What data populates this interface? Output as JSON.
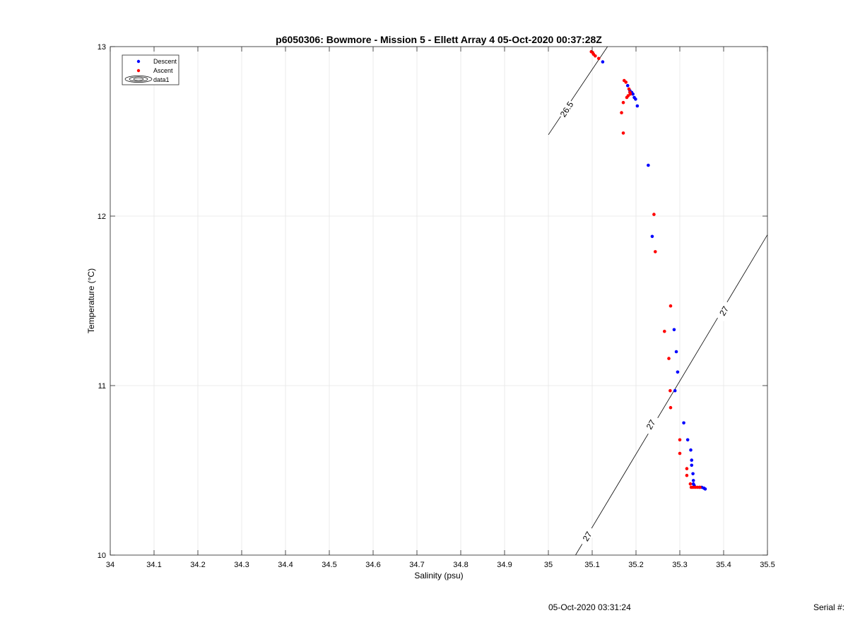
{
  "chart_data": {
    "type": "scatter",
    "title": "p6050306: Bowmore - Mission 5 - Ellett Array 4 05-Oct-2020 00:37:28Z",
    "xlabel": "Salinity (psu)",
    "ylabel": "Temperature (°C)",
    "xlim": [
      34,
      35.5
    ],
    "ylim": [
      10,
      13
    ],
    "xticks": [
      34,
      34.1,
      34.2,
      34.3,
      34.4,
      34.5,
      34.6,
      34.7,
      34.8,
      34.9,
      35,
      35.1,
      35.2,
      35.3,
      35.4,
      35.5
    ],
    "xtick_labels": [
      "34",
      "34.1",
      "34.2",
      "34.3",
      "34.4",
      "34.5",
      "34.6",
      "34.7",
      "34.8",
      "34.9",
      "35",
      "35.1",
      "35.2",
      "35.3",
      "35.4",
      "35.5"
    ],
    "yticks": [
      10,
      11,
      12,
      13
    ],
    "ytick_labels": [
      "10",
      "11",
      "12",
      "13"
    ],
    "grid": true,
    "legend_position": "top-left",
    "legend": [
      "Descent",
      "Ascent",
      "data1"
    ],
    "series": [
      {
        "name": "Descent",
        "color": "#0000ff",
        "points": [
          [
            35.124,
            12.91
          ],
          [
            35.181,
            12.77
          ],
          [
            35.186,
            12.74
          ],
          [
            35.19,
            12.73
          ],
          [
            35.193,
            12.72
          ],
          [
            35.196,
            12.7
          ],
          [
            35.199,
            12.69
          ],
          [
            35.203,
            12.65
          ],
          [
            35.228,
            12.3
          ],
          [
            35.237,
            11.88
          ],
          [
            35.287,
            11.33
          ],
          [
            35.292,
            11.2
          ],
          [
            35.295,
            11.08
          ],
          [
            35.289,
            10.97
          ],
          [
            35.309,
            10.78
          ],
          [
            35.318,
            10.68
          ],
          [
            35.325,
            10.62
          ],
          [
            35.327,
            10.56
          ],
          [
            35.327,
            10.53
          ],
          [
            35.33,
            10.48
          ],
          [
            35.331,
            10.44
          ],
          [
            35.331,
            10.42
          ],
          [
            35.333,
            10.41
          ],
          [
            35.345,
            10.4
          ],
          [
            35.35,
            10.4
          ],
          [
            35.355,
            10.395
          ],
          [
            35.358,
            10.39
          ]
        ]
      },
      {
        "name": "Ascent",
        "color": "#ff0000",
        "points": [
          [
            35.098,
            12.97
          ],
          [
            35.101,
            12.965
          ],
          [
            35.103,
            12.955
          ],
          [
            35.107,
            12.945
          ],
          [
            35.115,
            12.93
          ],
          [
            35.173,
            12.8
          ],
          [
            35.177,
            12.79
          ],
          [
            35.184,
            12.75
          ],
          [
            35.186,
            12.73
          ],
          [
            35.182,
            12.71
          ],
          [
            35.179,
            12.7
          ],
          [
            35.187,
            12.72
          ],
          [
            35.171,
            12.67
          ],
          [
            35.167,
            12.61
          ],
          [
            35.171,
            12.49
          ],
          [
            35.241,
            12.01
          ],
          [
            35.244,
            11.79
          ],
          [
            35.279,
            11.47
          ],
          [
            35.265,
            11.32
          ],
          [
            35.275,
            11.16
          ],
          [
            35.278,
            10.97
          ],
          [
            35.279,
            10.87
          ],
          [
            35.3,
            10.68
          ],
          [
            35.3,
            10.6
          ],
          [
            35.316,
            10.51
          ],
          [
            35.316,
            10.47
          ],
          [
            35.324,
            10.42
          ],
          [
            35.326,
            10.4
          ],
          [
            35.33,
            10.4
          ],
          [
            35.335,
            10.4
          ],
          [
            35.34,
            10.4
          ],
          [
            35.346,
            10.4
          ]
        ]
      }
    ],
    "contours": [
      {
        "label": "26.5",
        "line": [
          [
            35.0,
            12.48
          ],
          [
            35.135,
            13.0
          ]
        ],
        "labels_at": [
          [
            35.042,
            12.63
          ]
        ]
      },
      {
        "label": "27",
        "line": [
          [
            35.062,
            10.0
          ],
          [
            35.5,
            11.89
          ]
        ],
        "labels_at": [
          [
            35.089,
            10.11
          ],
          [
            35.234,
            10.77
          ],
          [
            35.401,
            11.44
          ]
        ]
      }
    ],
    "footer": {
      "timestamp": "05-Oct-2020 03:31:24",
      "serial": "Serial #:"
    }
  }
}
